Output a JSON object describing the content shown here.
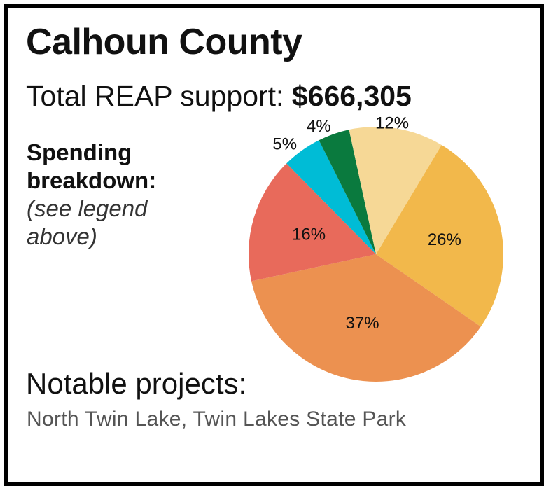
{
  "header": {
    "title": "Calhoun County",
    "total_prefix": "Total REAP support: ",
    "total_amount": "$666,305"
  },
  "breakdown": {
    "heading_line1": "Spending",
    "heading_line2": "breakdown:",
    "note_line1": "(see legend",
    "note_line2": "above)"
  },
  "footer": {
    "notable_label": "Notable projects:",
    "projects": "North Twin Lake, Twin Lakes State Park"
  },
  "chart_data": {
    "type": "pie",
    "slices": [
      {
        "value": 26,
        "label": "26%",
        "color": "#F2B84B"
      },
      {
        "value": 37,
        "label": "37%",
        "color": "#EC9150"
      },
      {
        "value": 16,
        "label": "16%",
        "color": "#E86A5B"
      },
      {
        "value": 5,
        "label": "5%",
        "color": "#00BCD6"
      },
      {
        "value": 4,
        "label": "4%",
        "color": "#0A7A3E"
      },
      {
        "value": 12,
        "label": "12%",
        "color": "#F6D896"
      }
    ]
  }
}
